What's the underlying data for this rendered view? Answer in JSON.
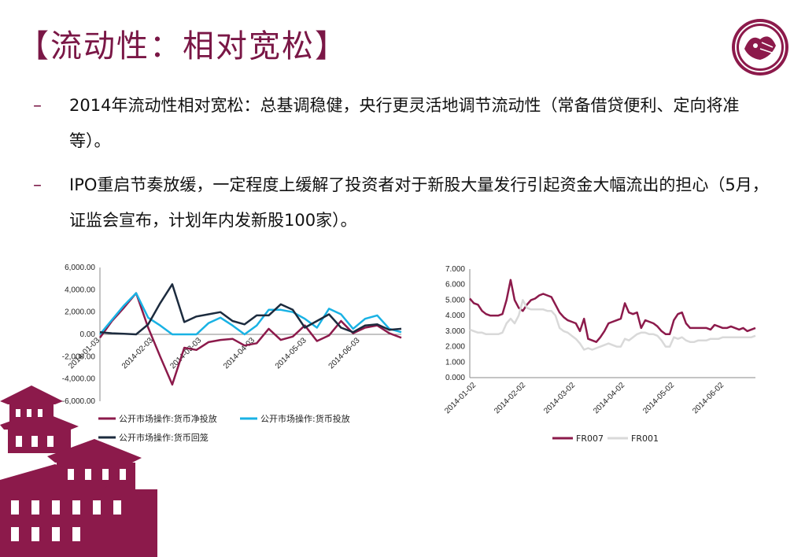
{
  "title": "【流动性：相对宽松】",
  "bullets": [
    {
      "dash": "–",
      "text": "2014年流动性相对宽松：总基调稳健，央行更灵活地调节流动性（常备借贷便利、定向将准等）。"
    },
    {
      "dash": "–",
      "text": "IPO重启节奏放缓，一定程度上缓解了投资者对于新股大量发行引起资金大幅流出的担心（5月，证监会宣布，计划年内发新股100家）。"
    }
  ],
  "chart_data": [
    {
      "type": "line",
      "x": [
        "2014-01-03",
        "2014-01-10",
        "2014-01-17",
        "2014-01-24",
        "2014-01-31",
        "2014-02-07",
        "2014-02-14",
        "2014-02-21",
        "2014-02-28",
        "2014-03-07",
        "2014-03-14",
        "2014-03-21",
        "2014-03-28",
        "2014-04-04",
        "2014-04-11",
        "2014-04-18",
        "2014-04-25",
        "2014-05-02",
        "2014-05-09",
        "2014-05-16",
        "2014-05-23",
        "2014-05-30",
        "2014-06-06",
        "2014-06-13",
        "2014-06-20",
        "2014-06-27"
      ],
      "xticks": [
        "2014-01-03",
        "2014-02-03",
        "2014-03-03",
        "2014-04-03",
        "2014-05-03",
        "2014-06-03"
      ],
      "yticks": [
        "6,000.00",
        "4,000.00",
        "2,000.00",
        "0.00",
        "-2,000.00",
        "-4,000.00",
        "-6,000.00"
      ],
      "ylim": [
        -6000,
        6000
      ],
      "series": [
        {
          "name": "公开市场操作:货币净投放",
          "color": "#8c1a4b",
          "values": [
            -300,
            1200,
            2400,
            3700,
            600,
            -2000,
            -4500,
            -1200,
            -1400,
            -700,
            -500,
            -400,
            -1000,
            -800,
            500,
            -500,
            -200,
            800,
            -600,
            -100,
            1200,
            100,
            600,
            800,
            100,
            -300
          ]
        },
        {
          "name": "公开市场操作:货币投放",
          "color": "#19b2e4",
          "values": [
            0,
            1300,
            2600,
            3700,
            1500,
            800,
            0,
            0,
            0,
            1000,
            1500,
            800,
            0,
            800,
            2200,
            2200,
            2000,
            1400,
            600,
            2300,
            1800,
            500,
            1400,
            1700,
            500,
            200
          ]
        },
        {
          "name": "公开市场操作:货币回笼",
          "color": "#1c2b3e",
          "values": [
            200,
            100,
            50,
            0,
            900,
            2800,
            4500,
            1100,
            1600,
            1800,
            2000,
            1200,
            900,
            1700,
            1700,
            2700,
            2200,
            600,
            1200,
            1800,
            600,
            200,
            800,
            900,
            400,
            500
          ]
        }
      ]
    },
    {
      "type": "line",
      "xticks": [
        "2014-01-02",
        "2014-02-02",
        "2014-03-02",
        "2014-04-02",
        "2014-05-02",
        "2014-06-02"
      ],
      "yticks": [
        "7.000",
        "6.000",
        "5.000",
        "4.000",
        "3.000",
        "2.000",
        "1.000",
        "0.000"
      ],
      "ylim": [
        0,
        7
      ],
      "series": [
        {
          "name": "FR007",
          "color": "#8c1a4b",
          "values": [
            5.1,
            4.8,
            4.7,
            4.3,
            4.1,
            4.0,
            4.0,
            4.0,
            4.1,
            5.0,
            6.3,
            5.0,
            4.5,
            4.3,
            4.7,
            5.0,
            5.1,
            5.3,
            5.4,
            5.3,
            5.2,
            4.7,
            4.2,
            3.9,
            3.7,
            3.6,
            3.5,
            3.0,
            3.8,
            2.5,
            2.4,
            2.3,
            2.6,
            3.0,
            3.5,
            3.6,
            3.7,
            3.8,
            4.8,
            4.2,
            4.1,
            4.2,
            3.2,
            3.7,
            3.6,
            3.5,
            3.3,
            3.0,
            2.8,
            2.8,
            3.7,
            4.1,
            4.2,
            3.5,
            3.2,
            3.2,
            3.2,
            3.2,
            3.2,
            3.1,
            3.4,
            3.3,
            3.2,
            3.2,
            3.3,
            3.2,
            3.1,
            3.2,
            3.0,
            3.1,
            3.2
          ]
        },
        {
          "name": "FR001",
          "color": "#d9d9d9",
          "values": [
            3.1,
            3.0,
            2.9,
            2.9,
            2.8,
            2.8,
            2.8,
            2.8,
            2.9,
            3.5,
            3.8,
            3.5,
            4.0,
            5.0,
            4.5,
            4.4,
            4.4,
            4.4,
            4.4,
            4.3,
            4.3,
            4.0,
            3.2,
            3.0,
            2.9,
            2.7,
            2.5,
            2.2,
            1.8,
            1.9,
            1.8,
            1.9,
            2.0,
            2.1,
            2.2,
            2.1,
            2.0,
            2.0,
            2.5,
            2.4,
            2.6,
            2.8,
            2.9,
            2.9,
            2.8,
            2.8,
            2.7,
            2.4,
            2.0,
            2.0,
            2.6,
            2.5,
            2.6,
            2.4,
            2.3,
            2.3,
            2.4,
            2.4,
            2.4,
            2.5,
            2.5,
            2.5,
            2.6,
            2.6,
            2.6,
            2.6,
            2.6,
            2.6,
            2.6,
            2.6,
            2.7
          ]
        }
      ]
    }
  ]
}
